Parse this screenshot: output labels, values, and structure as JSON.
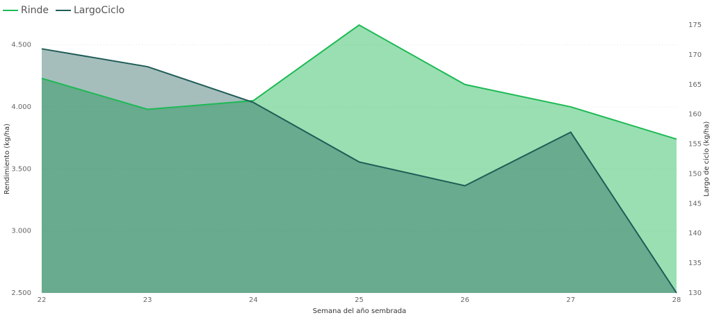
{
  "chart_data": {
    "type": "area",
    "x_label": "Semana del año sembrada",
    "y_label": "Rendimiento (kg/ha)",
    "y2_label": "Largo de ciclo (kg/ha)",
    "categories": [
      "22",
      "23",
      "24",
      "25",
      "26",
      "27",
      "28"
    ],
    "series": [
      {
        "name": "Rinde",
        "color": "#1db954",
        "values": [
          4230,
          3980,
          4050,
          4660,
          4180,
          4000,
          3740
        ]
      },
      {
        "name": "LargoCiclo",
        "color": "#1f5c57",
        "axis": "y2",
        "values": [
          171,
          168,
          162,
          152,
          148,
          157,
          130
        ]
      }
    ],
    "ylim": [
      2500,
      4660
    ],
    "yticks": [
      {
        "value": 2500,
        "label": "2.500"
      },
      {
        "value": 3000,
        "label": "3.000"
      },
      {
        "value": 3500,
        "label": "3.500"
      },
      {
        "value": 4000,
        "label": "4.000"
      },
      {
        "value": 4500,
        "label": "4.500"
      }
    ],
    "y2lim": [
      130,
      175
    ],
    "y2ticks": [
      130,
      135,
      140,
      145,
      150,
      155,
      160,
      165,
      170,
      175
    ],
    "grid": true,
    "legend": "top-left"
  }
}
